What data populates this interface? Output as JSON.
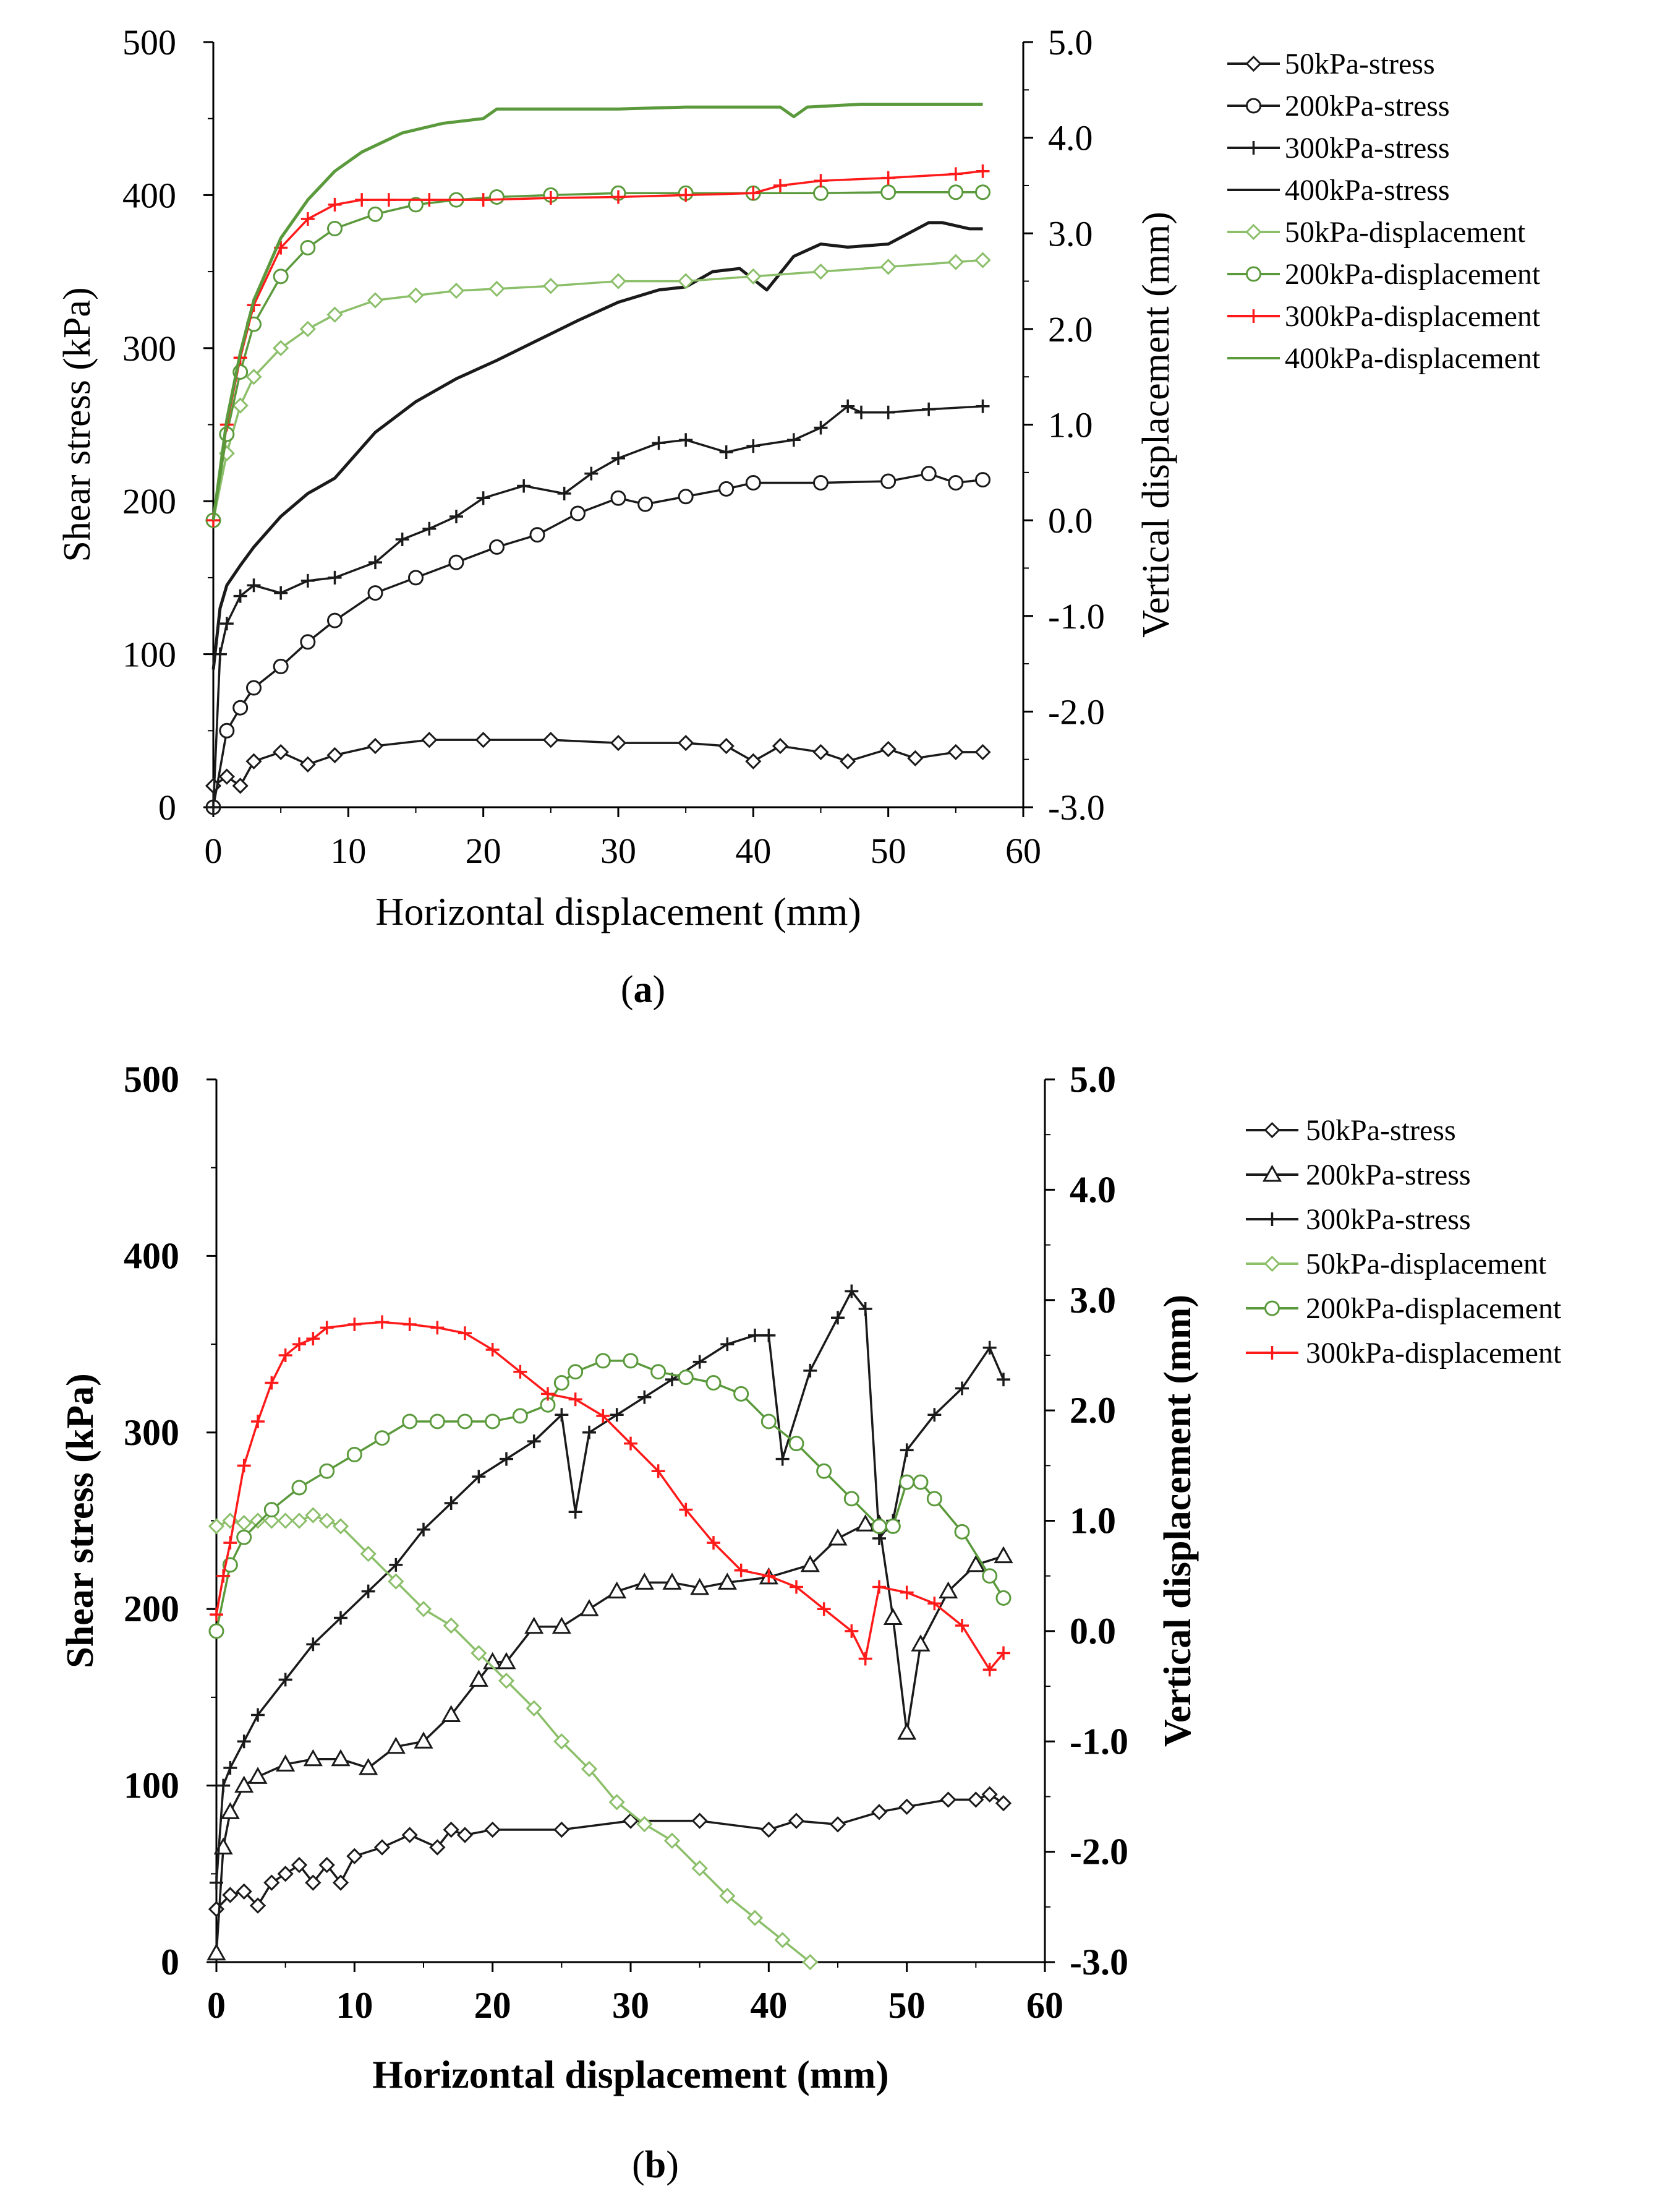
{
  "colors": {
    "black": "#1a1a1a",
    "green": "#5b9a3c",
    "green_light": "#8cbf6a",
    "red": "#ff1a1a"
  },
  "chart_data": [
    {
      "type": "line",
      "panel_label": "a",
      "xlabel": "Horizontal displacement (mm)",
      "ylabel": "Shear stress (kPa)",
      "y2label": "Vertical displacement (mm)",
      "xlim": [
        0,
        60
      ],
      "ylim": [
        0,
        500
      ],
      "y2lim": [
        -3.0,
        5.0
      ],
      "x_ticks": [
        "0",
        "10",
        "20",
        "30",
        "40",
        "50",
        "60"
      ],
      "y_ticks": [
        "0",
        "100",
        "200",
        "300",
        "400",
        "500"
      ],
      "y2_ticks": [
        "-3.0",
        "-2.0",
        "-1.0",
        "0.0",
        "1.0",
        "2.0",
        "3.0",
        "4.0",
        "5.0"
      ],
      "legend_position": "right",
      "series": [
        {
          "name": "50kPa-stress",
          "axis": "left",
          "color": "black",
          "marker": "diamond",
          "x": [
            0,
            1,
            2,
            3,
            5,
            7,
            9,
            12,
            16,
            20,
            25,
            30,
            35,
            38,
            40,
            42,
            45,
            47,
            50,
            52,
            55,
            57
          ],
          "y": [
            14,
            20,
            14,
            30,
            36,
            28,
            34,
            40,
            44,
            44,
            44,
            42,
            42,
            40,
            30,
            40,
            36,
            30,
            38,
            32,
            36,
            36
          ]
        },
        {
          "name": "200kPa-stress",
          "axis": "left",
          "color": "black",
          "marker": "circle",
          "x": [
            0,
            1,
            2,
            3,
            5,
            7,
            9,
            12,
            15,
            18,
            21,
            24,
            27,
            30,
            32,
            35,
            38,
            40,
            45,
            50,
            53,
            55,
            57
          ],
          "y": [
            0,
            50,
            65,
            78,
            92,
            108,
            122,
            140,
            150,
            160,
            170,
            178,
            192,
            202,
            198,
            203,
            208,
            212,
            212,
            213,
            218,
            212,
            214
          ]
        },
        {
          "name": "300kPa-stress",
          "axis": "left",
          "color": "black",
          "marker": "plus",
          "x": [
            0,
            0.5,
            1,
            2,
            3,
            5,
            7,
            9,
            12,
            14,
            16,
            18,
            20,
            23,
            26,
            28,
            30,
            33,
            35,
            38,
            40,
            43,
            45,
            47,
            48,
            50,
            53,
            57
          ],
          "y": [
            0,
            100,
            120,
            138,
            145,
            140,
            148,
            150,
            160,
            175,
            182,
            190,
            202,
            210,
            205,
            218,
            228,
            238,
            240,
            232,
            236,
            240,
            248,
            262,
            258,
            258,
            260,
            262
          ]
        },
        {
          "name": "400kPa-stress",
          "axis": "left",
          "color": "black",
          "marker": "none",
          "x": [
            0,
            0.5,
            1,
            2,
            3,
            5,
            7,
            9,
            12,
            15,
            18,
            21,
            24,
            27,
            30,
            33,
            35,
            37,
            39,
            41,
            43,
            45,
            47,
            50,
            53,
            54,
            56,
            57
          ],
          "y": [
            90,
            130,
            145,
            158,
            170,
            190,
            205,
            215,
            245,
            265,
            280,
            292,
            305,
            318,
            330,
            338,
            340,
            350,
            352,
            338,
            360,
            368,
            366,
            368,
            382,
            382,
            378,
            378
          ]
        },
        {
          "name": "50kPa-displacement",
          "axis": "right",
          "color": "green_light",
          "marker": "diamond",
          "x": [
            0,
            1,
            2,
            3,
            5,
            7,
            9,
            12,
            15,
            18,
            21,
            25,
            30,
            35,
            40,
            45,
            50,
            55,
            57
          ],
          "y": [
            0.0,
            0.7,
            1.2,
            1.5,
            1.8,
            2.0,
            2.15,
            2.3,
            2.35,
            2.4,
            2.42,
            2.45,
            2.5,
            2.5,
            2.55,
            2.6,
            2.65,
            2.7,
            2.72
          ]
        },
        {
          "name": "200kPa-displacement",
          "axis": "right",
          "color": "green",
          "marker": "circle",
          "x": [
            0,
            1,
            2,
            3,
            5,
            7,
            9,
            12,
            15,
            18,
            21,
            25,
            30,
            35,
            40,
            45,
            50,
            55,
            57
          ],
          "y": [
            0.0,
            0.9,
            1.55,
            2.05,
            2.55,
            2.85,
            3.05,
            3.2,
            3.3,
            3.35,
            3.38,
            3.4,
            3.42,
            3.42,
            3.42,
            3.42,
            3.43,
            3.43,
            3.43
          ]
        },
        {
          "name": "300kPa-displacement",
          "axis": "right",
          "color": "red",
          "marker": "plus",
          "x": [
            0,
            1,
            2,
            3,
            5,
            7,
            9,
            11,
            13,
            16,
            20,
            25,
            30,
            35,
            40,
            42,
            45,
            50,
            55,
            57
          ],
          "y": [
            0.0,
            1.0,
            1.7,
            2.25,
            2.85,
            3.15,
            3.3,
            3.35,
            3.35,
            3.35,
            3.35,
            3.37,
            3.38,
            3.4,
            3.42,
            3.5,
            3.55,
            3.58,
            3.62,
            3.65
          ]
        },
        {
          "name": "400kPa-displacement",
          "axis": "right",
          "color": "green",
          "marker": "none",
          "x": [
            0,
            1,
            2,
            3,
            5,
            7,
            9,
            11,
            14,
            17,
            20,
            21,
            25,
            30,
            35,
            42,
            43,
            44,
            48,
            52,
            57
          ],
          "y": [
            0.0,
            1.05,
            1.75,
            2.3,
            2.95,
            3.35,
            3.65,
            3.85,
            4.05,
            4.15,
            4.2,
            4.3,
            4.3,
            4.3,
            4.32,
            4.32,
            4.22,
            4.32,
            4.35,
            4.35,
            4.35
          ]
        }
      ]
    },
    {
      "type": "line",
      "panel_label": "b",
      "xlabel": "Horizontal displacement (mm)",
      "ylabel": "Shear stress (kPa)",
      "y2label": "Vertical displacement (mm)",
      "xlim": [
        0,
        60
      ],
      "ylim": [
        0,
        500
      ],
      "y2lim": [
        -3.0,
        5.0
      ],
      "x_ticks": [
        "0",
        "10",
        "20",
        "30",
        "40",
        "50",
        "60"
      ],
      "y_ticks": [
        "0",
        "100",
        "200",
        "300",
        "400",
        "500"
      ],
      "y2_ticks": [
        "-3.0",
        "-2.0",
        "-1.0",
        "0.0",
        "1.0",
        "2.0",
        "3.0",
        "4.0",
        "5.0"
      ],
      "legend_position": "right",
      "series": [
        {
          "name": "50kPa-stress",
          "axis": "left",
          "color": "black",
          "marker": "diamond",
          "x": [
            0,
            1,
            2,
            3,
            4,
            5,
            6,
            7,
            8,
            9,
            10,
            12,
            14,
            16,
            17,
            18,
            20,
            25,
            30,
            35,
            40,
            42,
            45,
            48,
            50,
            53,
            55,
            56,
            57
          ],
          "y": [
            30,
            38,
            40,
            32,
            45,
            50,
            55,
            45,
            55,
            45,
            60,
            65,
            72,
            65,
            75,
            72,
            75,
            75,
            80,
            80,
            75,
            80,
            78,
            85,
            88,
            92,
            92,
            95,
            90
          ]
        },
        {
          "name": "200kPa-stress",
          "axis": "left",
          "color": "black",
          "marker": "triangle",
          "x": [
            0,
            0.5,
            1,
            2,
            3,
            5,
            7,
            9,
            11,
            13,
            15,
            17,
            19,
            20,
            21,
            23,
            25,
            27,
            29,
            31,
            33,
            35,
            37,
            40,
            43,
            45,
            47,
            48,
            49,
            50,
            51,
            53,
            55,
            57
          ],
          "y": [
            5,
            65,
            85,
            100,
            105,
            112,
            115,
            115,
            110,
            122,
            125,
            140,
            160,
            170,
            170,
            190,
            190,
            200,
            210,
            215,
            215,
            212,
            215,
            218,
            225,
            240,
            248,
            248,
            195,
            130,
            180,
            210,
            225,
            230
          ]
        },
        {
          "name": "300kPa-stress",
          "axis": "left",
          "color": "black",
          "marker": "plus",
          "x": [
            0,
            0.5,
            1,
            2,
            3,
            5,
            7,
            9,
            11,
            13,
            15,
            17,
            19,
            21,
            23,
            25,
            26,
            27,
            29,
            31,
            33,
            35,
            37,
            39,
            40,
            41,
            43,
            45,
            46,
            47,
            48,
            49,
            50,
            52,
            54,
            56,
            57
          ],
          "y": [
            45,
            100,
            110,
            125,
            140,
            160,
            180,
            195,
            210,
            225,
            245,
            260,
            275,
            285,
            295,
            310,
            255,
            300,
            310,
            320,
            330,
            340,
            350,
            355,
            355,
            285,
            335,
            365,
            380,
            370,
            240,
            250,
            290,
            310,
            325,
            348,
            330
          ]
        },
        {
          "name": "50kPa-displacement",
          "axis": "right",
          "color": "green_light",
          "marker": "diamond",
          "x": [
            0,
            1,
            2,
            3,
            4,
            5,
            6,
            7,
            8,
            9,
            11,
            13,
            15,
            17,
            19,
            21,
            23,
            25,
            27,
            29,
            31,
            33,
            35,
            37,
            39,
            41,
            43
          ],
          "y": [
            0.95,
            1.0,
            0.98,
            1.0,
            1.0,
            1.0,
            1.0,
            1.05,
            1.0,
            0.95,
            0.7,
            0.45,
            0.2,
            0.05,
            -0.2,
            -0.45,
            -0.7,
            -1.0,
            -1.25,
            -1.55,
            -1.75,
            -1.9,
            -2.15,
            -2.4,
            -2.6,
            -2.8,
            -3.0
          ]
        },
        {
          "name": "200kPa-displacement",
          "axis": "right",
          "color": "green",
          "marker": "circle",
          "x": [
            0,
            1,
            2,
            4,
            6,
            8,
            10,
            12,
            14,
            16,
            18,
            20,
            22,
            24,
            25,
            26,
            28,
            30,
            32,
            34,
            36,
            38,
            40,
            42,
            44,
            46,
            48,
            49,
            50,
            51,
            52,
            54,
            56,
            57
          ],
          "y": [
            0.0,
            0.6,
            0.85,
            1.1,
            1.3,
            1.45,
            1.6,
            1.75,
            1.9,
            1.9,
            1.9,
            1.9,
            1.95,
            2.05,
            2.25,
            2.35,
            2.45,
            2.45,
            2.35,
            2.3,
            2.25,
            2.15,
            1.9,
            1.7,
            1.45,
            1.2,
            0.95,
            0.95,
            1.35,
            1.35,
            1.2,
            0.9,
            0.5,
            0.3
          ]
        },
        {
          "name": "300kPa-displacement",
          "axis": "right",
          "color": "red",
          "marker": "plus",
          "x": [
            0,
            0.5,
            1,
            2,
            3,
            4,
            5,
            6,
            7,
            8,
            10,
            12,
            14,
            16,
            18,
            20,
            22,
            24,
            26,
            28,
            30,
            32,
            34,
            36,
            38,
            40,
            42,
            44,
            46,
            47,
            48,
            50,
            52,
            54,
            56,
            57
          ],
          "y": [
            0.15,
            0.5,
            0.8,
            1.5,
            1.9,
            2.25,
            2.5,
            2.6,
            2.65,
            2.75,
            2.78,
            2.8,
            2.78,
            2.75,
            2.7,
            2.55,
            2.35,
            2.15,
            2.1,
            1.95,
            1.7,
            1.45,
            1.1,
            0.8,
            0.55,
            0.5,
            0.4,
            0.2,
            0.0,
            -0.25,
            0.4,
            0.35,
            0.25,
            0.05,
            -0.35,
            -0.2
          ]
        }
      ]
    }
  ]
}
